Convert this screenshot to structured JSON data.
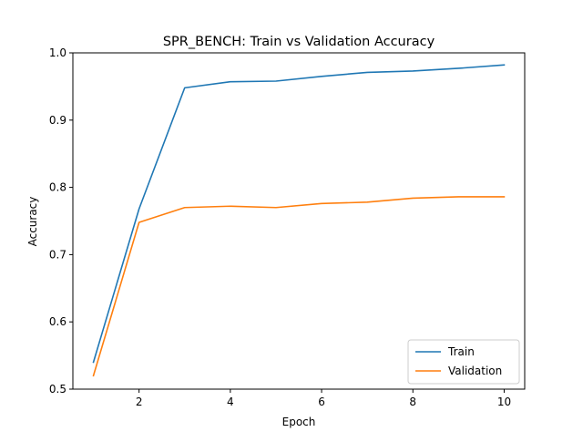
{
  "chart_data": {
    "type": "line",
    "title": "SPR_BENCH: Train vs Validation Accuracy",
    "xlabel": "Epoch",
    "ylabel": "Accuracy",
    "x": [
      1,
      2,
      3,
      4,
      5,
      6,
      7,
      8,
      9,
      10
    ],
    "xlim": [
      0.55,
      10.45
    ],
    "ylim": [
      0.5,
      1.0
    ],
    "xticks": [
      2,
      4,
      6,
      8,
      10
    ],
    "yticks": [
      0.5,
      0.6,
      0.7,
      0.8,
      0.9,
      1.0
    ],
    "xtick_labels": [
      "2",
      "4",
      "6",
      "8",
      "10"
    ],
    "ytick_labels": [
      "0.5",
      "0.6",
      "0.7",
      "0.8",
      "0.9",
      "1.0"
    ],
    "grid": false,
    "legend_position": "lower-right",
    "series": [
      {
        "name": "Train",
        "color": "#1f77b4",
        "values": [
          0.54,
          0.768,
          0.948,
          0.957,
          0.958,
          0.965,
          0.971,
          0.973,
          0.977,
          0.982
        ]
      },
      {
        "name": "Validation",
        "color": "#ff7f0e",
        "values": [
          0.52,
          0.748,
          0.77,
          0.772,
          0.77,
          0.776,
          0.778,
          0.784,
          0.786,
          0.786
        ]
      }
    ]
  }
}
